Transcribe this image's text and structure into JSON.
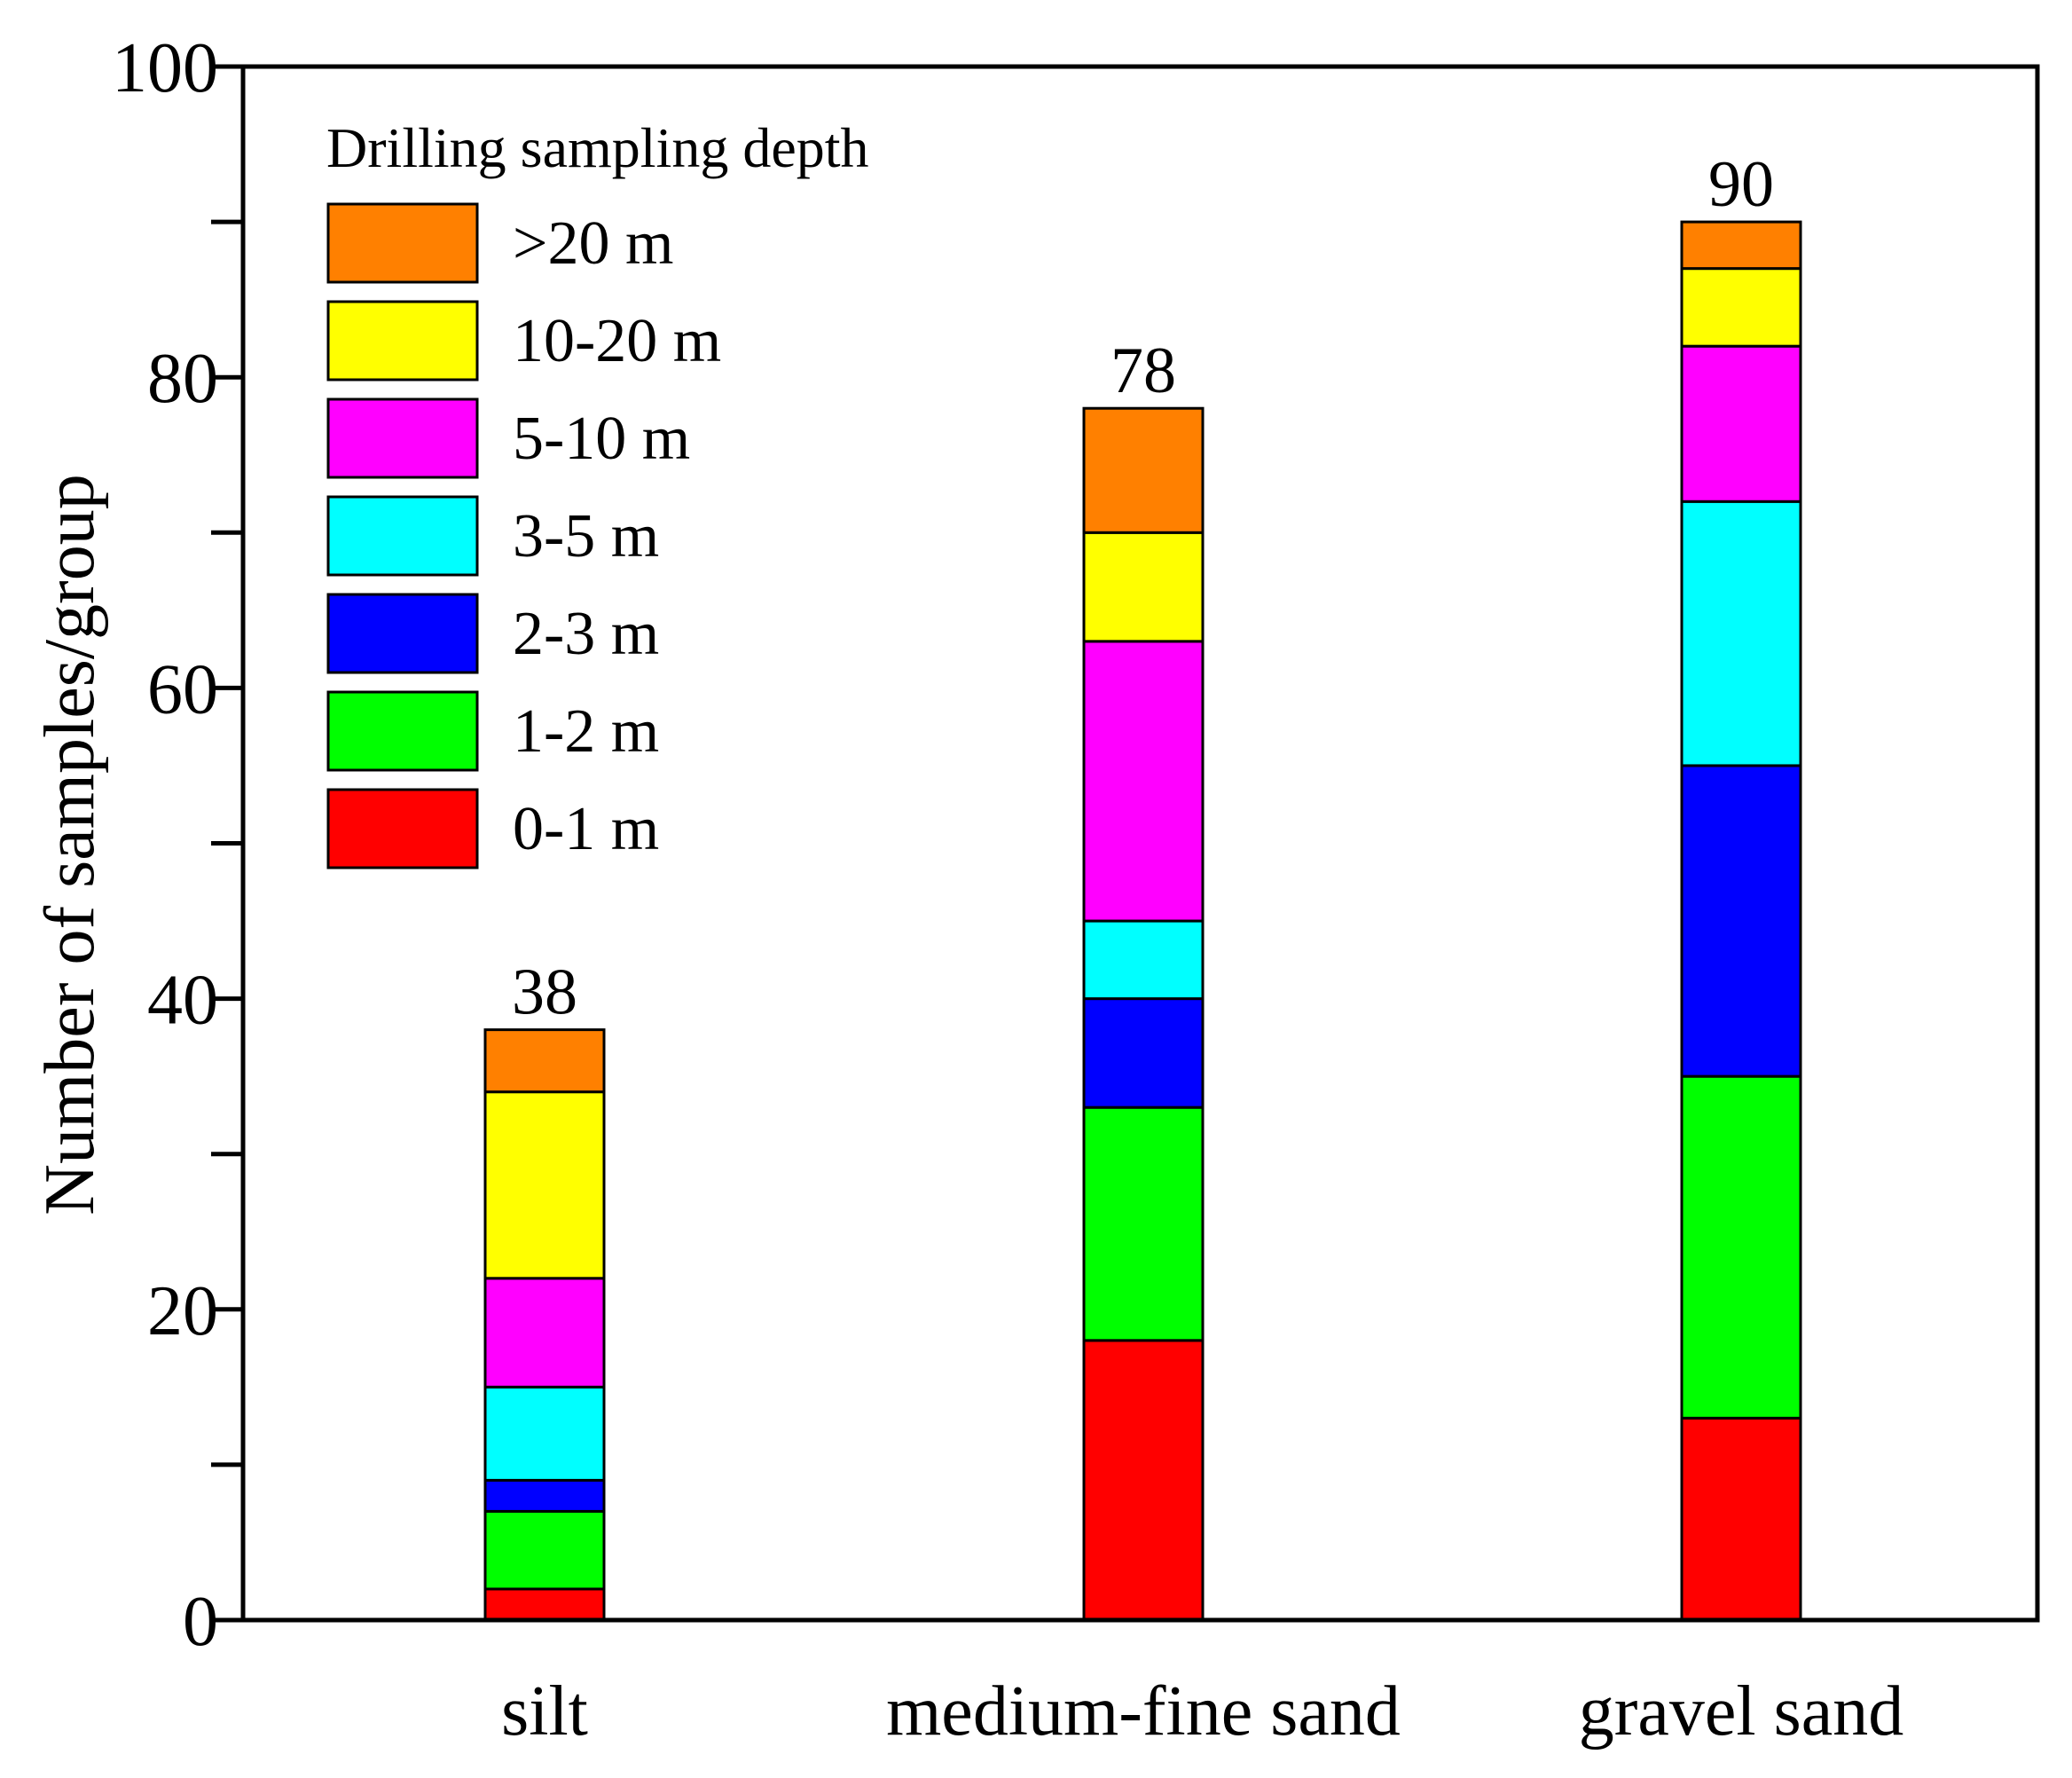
{
  "chart_data": {
    "type": "bar",
    "stacked": true,
    "title": "",
    "xlabel": "",
    "ylabel": "Number of samples/group",
    "ylim": [
      0,
      100
    ],
    "yticks": [
      "0",
      "20",
      "40",
      "60",
      "80",
      "100"
    ],
    "grid": false,
    "legend_position": "top-left",
    "categories": [
      "silt",
      "medium-fine sand",
      "gravel sand"
    ],
    "totals": [
      "38",
      "78",
      "90"
    ],
    "legend_title": "Drilling sampling depth",
    "series": [
      {
        "name": "0-1 m",
        "color": "#ff0000",
        "values": [
          2,
          18,
          13
        ]
      },
      {
        "name": "1-2 m",
        "color": "#00ff00",
        "values": [
          5,
          15,
          22
        ]
      },
      {
        "name": "2-3 m",
        "color": "#0000ff",
        "values": [
          2,
          7,
          20
        ]
      },
      {
        "name": "3-5 m",
        "color": "#00ffff",
        "values": [
          6,
          5,
          17
        ]
      },
      {
        "name": "5-10 m",
        "color": "#ff00ff",
        "values": [
          7,
          18,
          10
        ]
      },
      {
        "name": "10-20 m",
        "color": "#ffff00",
        "values": [
          12,
          7,
          5
        ]
      },
      {
        "name": ">20 m",
        "color": "#ff8000",
        "values": [
          4,
          8,
          3
        ]
      }
    ]
  }
}
